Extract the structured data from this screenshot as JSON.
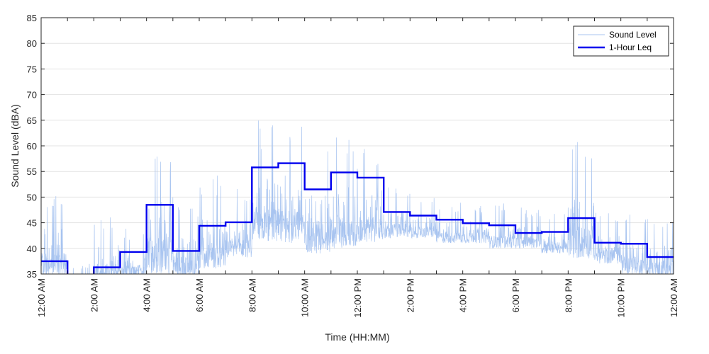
{
  "chart_data": {
    "type": "line",
    "xlabel": "Time (HH:MM)",
    "ylabel": "Sound Level (dBA)",
    "ylim": [
      35,
      85
    ],
    "xlim": [
      0,
      24
    ],
    "y_ticks": [
      "35",
      "40",
      "45",
      "50",
      "55",
      "60",
      "65",
      "70",
      "75",
      "80",
      "85"
    ],
    "x_tick_hours": [
      0,
      2,
      4,
      6,
      8,
      10,
      12,
      14,
      16,
      18,
      20,
      22,
      24
    ],
    "x_tick_labels": [
      "12:00 AM",
      "2:00 AM",
      "4:00 AM",
      "6:00 AM",
      "8:00 AM",
      "10:00 AM",
      "12:00 PM",
      "2:00 PM",
      "4:00 PM",
      "6:00 PM",
      "8:00 PM",
      "10:00 PM",
      "12:00 AM"
    ],
    "grid": true,
    "legend_position": "top-right",
    "series": [
      {
        "name": "Sound Level",
        "color": "#a8c4f0",
        "style": "thin-raw",
        "hourly_envelope": [
          {
            "hour": 0,
            "base": 34,
            "peak": 52
          },
          {
            "hour": 1,
            "base": 33,
            "peak": 37
          },
          {
            "hour": 2,
            "base": 33,
            "peak": 47
          },
          {
            "hour": 3,
            "base": 34,
            "peak": 44
          },
          {
            "hour": 4,
            "base": 35,
            "peak": 61
          },
          {
            "hour": 5,
            "base": 34,
            "peak": 50
          },
          {
            "hour": 6,
            "base": 36,
            "peak": 55
          },
          {
            "hour": 7,
            "base": 38,
            "peak": 52
          },
          {
            "hour": 8,
            "base": 41,
            "peak": 65
          },
          {
            "hour": 9,
            "base": 41,
            "peak": 65
          },
          {
            "hour": 10,
            "base": 39,
            "peak": 62
          },
          {
            "hour": 11,
            "base": 40,
            "peak": 62
          },
          {
            "hour": 12,
            "base": 41,
            "peak": 60
          },
          {
            "hour": 13,
            "base": 42,
            "peak": 52
          },
          {
            "hour": 14,
            "base": 42,
            "peak": 50
          },
          {
            "hour": 15,
            "base": 41,
            "peak": 49
          },
          {
            "hour": 16,
            "base": 41,
            "peak": 49
          },
          {
            "hour": 17,
            "base": 40,
            "peak": 49
          },
          {
            "hour": 18,
            "base": 40,
            "peak": 48
          },
          {
            "hour": 19,
            "base": 39,
            "peak": 47
          },
          {
            "hour": 20,
            "base": 38,
            "peak": 61
          },
          {
            "hour": 21,
            "base": 37,
            "peak": 47
          },
          {
            "hour": 22,
            "base": 35,
            "peak": 47
          },
          {
            "hour": 23,
            "base": 34,
            "peak": 46
          }
        ]
      },
      {
        "name": "1-Hour Leq",
        "color": "#0000ee",
        "style": "step",
        "hours": [
          0,
          1,
          2,
          3,
          4,
          5,
          6,
          7,
          8,
          9,
          10,
          11,
          12,
          13,
          14,
          15,
          16,
          17,
          18,
          19,
          20,
          21,
          22,
          23
        ],
        "values": [
          37.5,
          34.0,
          36.3,
          39.3,
          48.5,
          39.5,
          44.4,
          45.1,
          55.8,
          56.6,
          51.5,
          54.8,
          53.8,
          47.1,
          46.4,
          45.6,
          44.9,
          44.5,
          43.0,
          43.2,
          45.9,
          41.1,
          40.9,
          38.3
        ]
      }
    ]
  }
}
